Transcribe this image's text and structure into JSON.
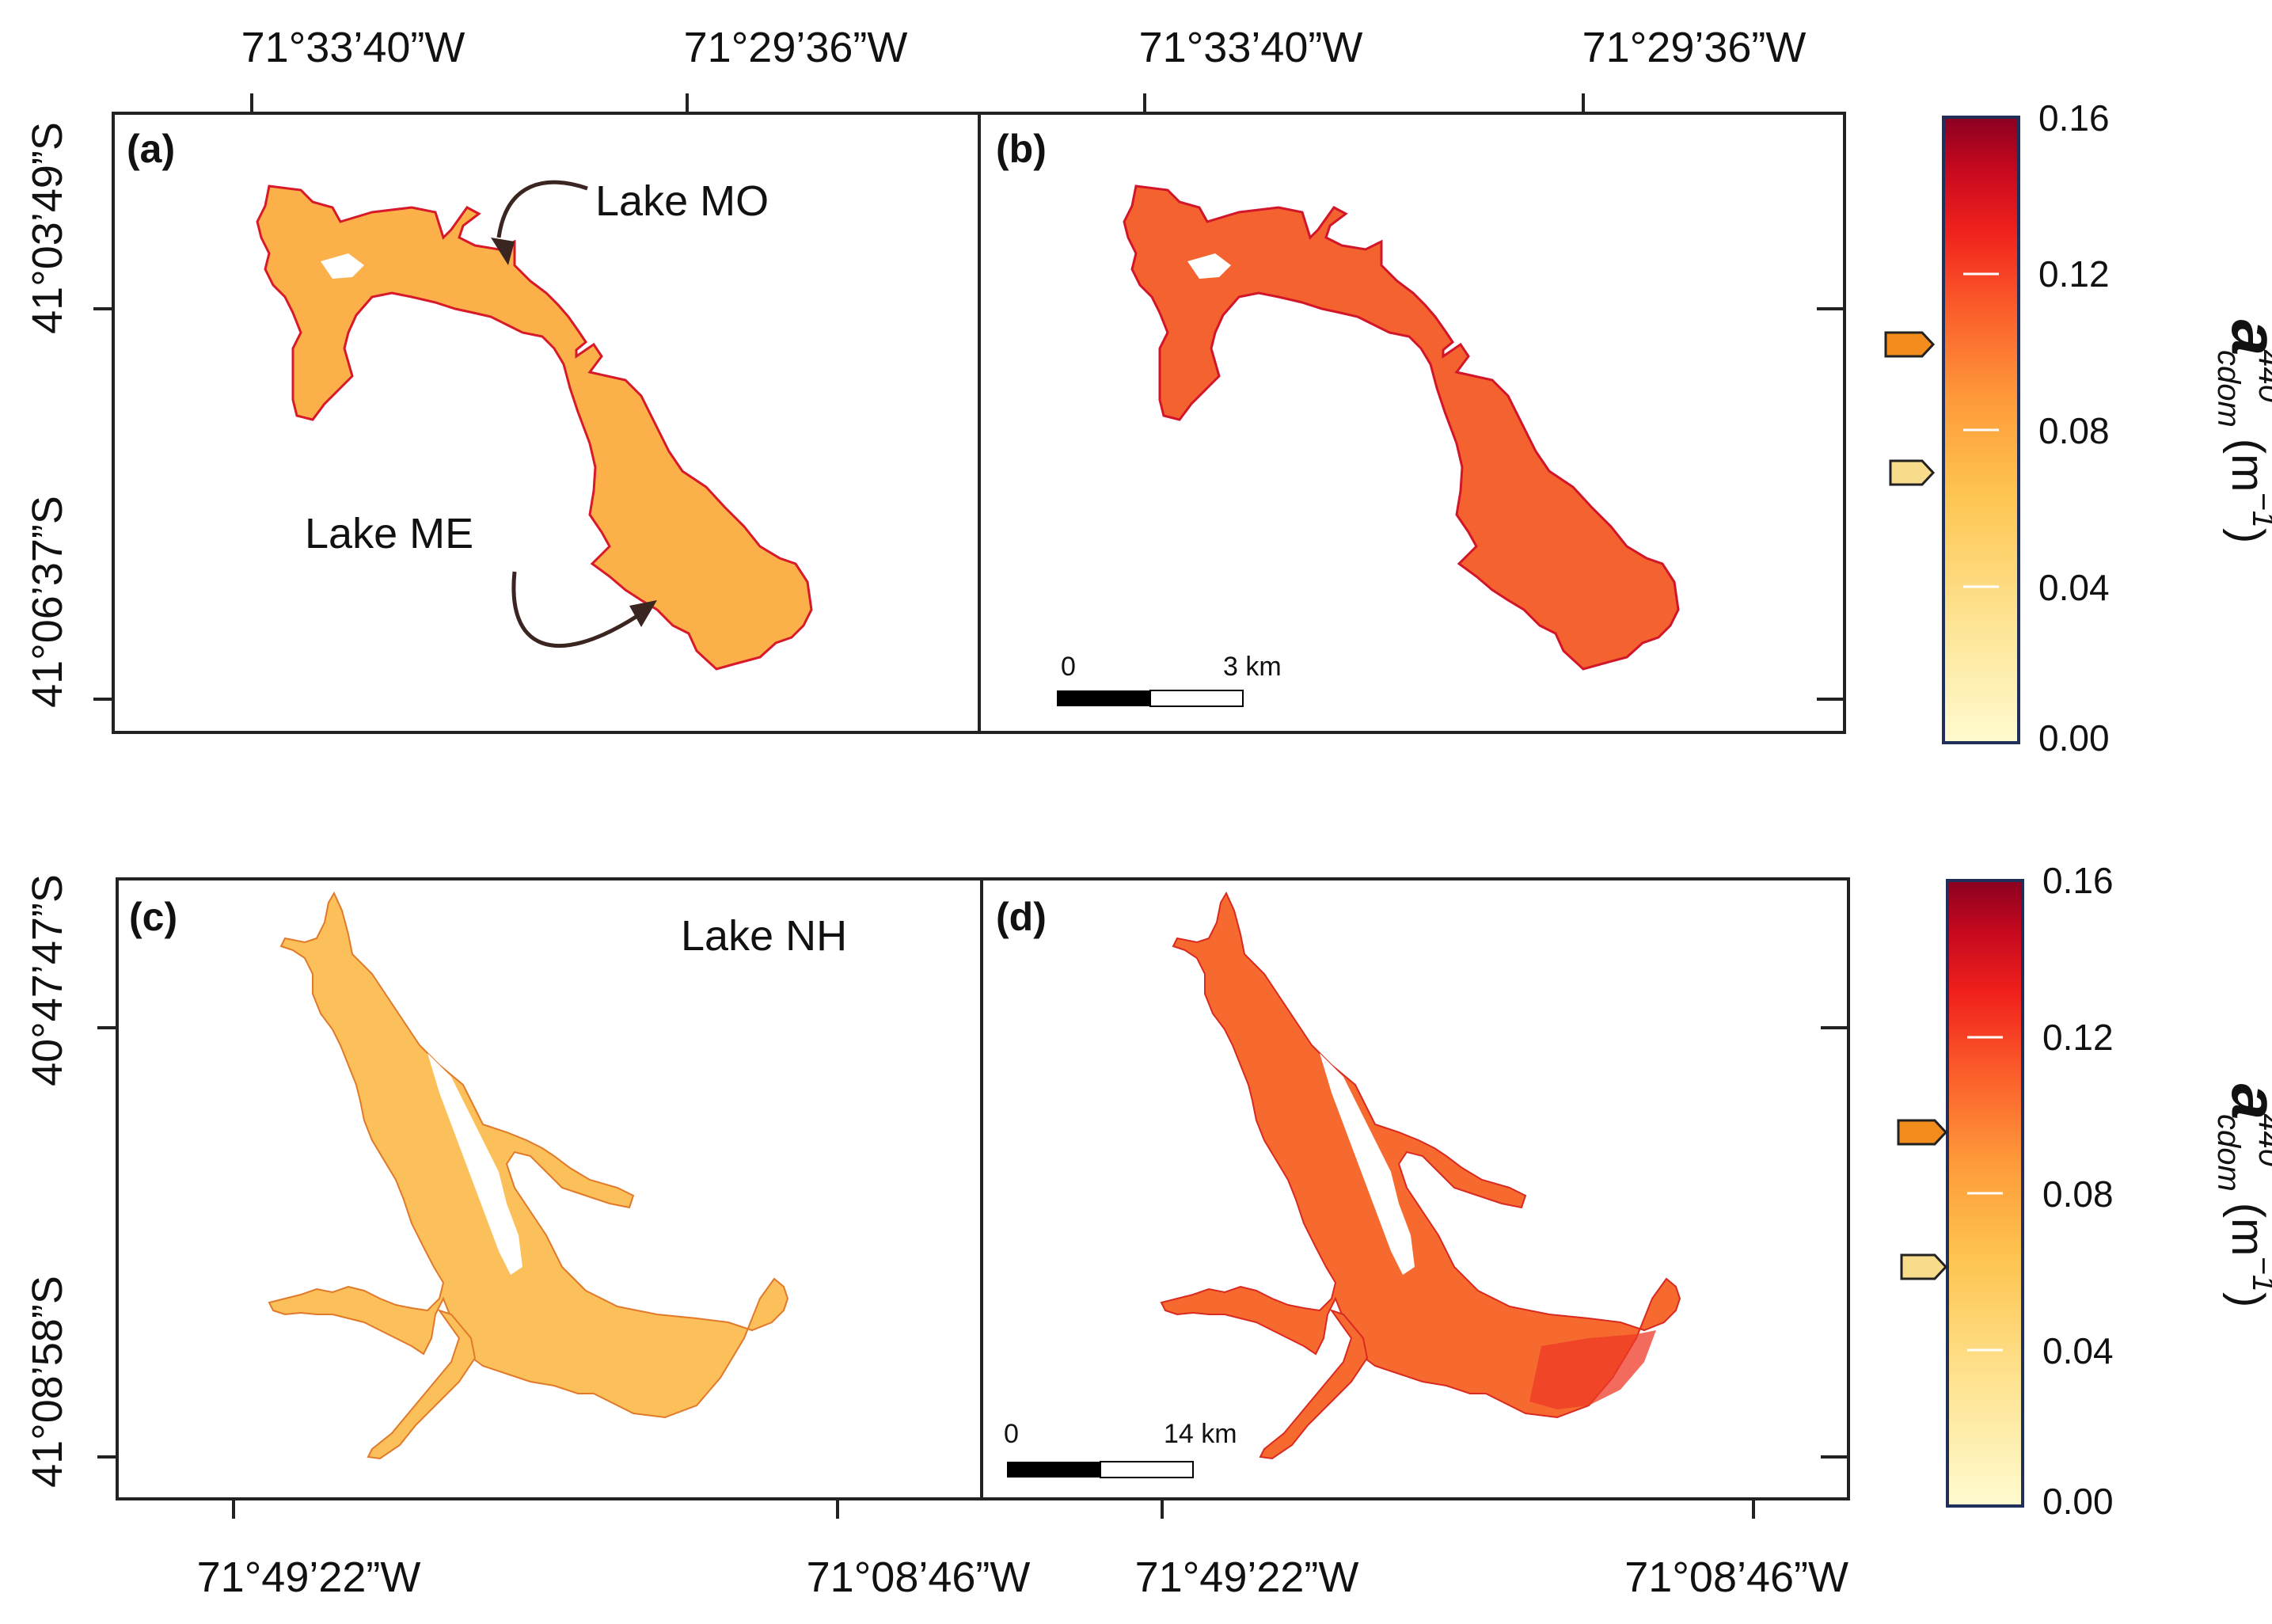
{
  "top_row": {
    "x_ticks": [
      "71°33’40”W",
      "71°29’36”W"
    ],
    "y_ticks": [
      "41°03’49”S",
      "41°06’37”S"
    ],
    "panels": [
      {
        "label": "(a)",
        "lake_labels": [
          "Lake MO",
          "Lake ME"
        ]
      },
      {
        "label": "(b)",
        "scalebar": {
          "start": "0",
          "end": "3 km"
        }
      }
    ]
  },
  "bottom_row": {
    "x_ticks": [
      "71°49’22”W",
      "71°08’46”W"
    ],
    "y_ticks": [
      "40°47’47”S",
      "41°08’58”S"
    ],
    "panels": [
      {
        "label": "(c)",
        "lake_labels": [
          "Lake NH"
        ]
      },
      {
        "label": "(d)",
        "scalebar": {
          "start": "0",
          "end": "14 km"
        }
      }
    ]
  },
  "colorbar": {
    "ticks": [
      "0.16",
      "0.12",
      "0.08",
      "0.04",
      "0.00"
    ],
    "title_symbol": "a",
    "title_superscript": "440",
    "title_subscript": "cdom",
    "title_unit": "(m",
    "title_unit_exp": "−1",
    "title_unit_close": ")",
    "colors": [
      "#fff7c0",
      "#fed976",
      "#feb24c",
      "#fd8d3c",
      "#fc4e2a",
      "#e31a1c",
      "#bd0026",
      "#800026"
    ],
    "markers": [
      {
        "fill": "#f28c1c",
        "role": "upper"
      },
      {
        "fill": "#f7dc8c",
        "role": "lower"
      }
    ]
  }
}
